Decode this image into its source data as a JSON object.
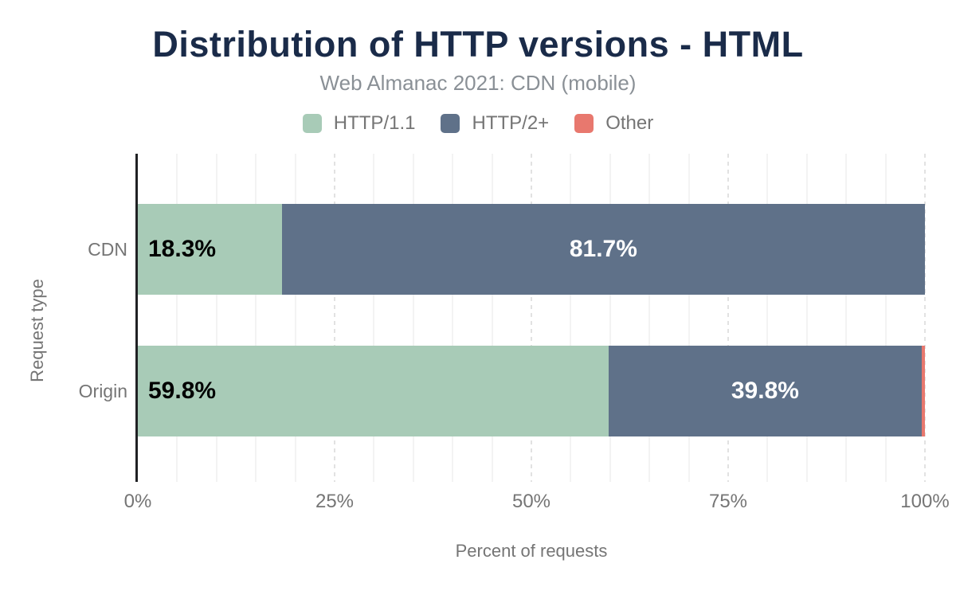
{
  "title": "Distribution of HTTP versions - HTML",
  "subtitle": "Web Almanac 2021: CDN (mobile)",
  "legend": {
    "items": [
      {
        "label": "HTTP/1.1",
        "color": "#a8cbb7"
      },
      {
        "label": "HTTP/2+",
        "color": "#5f7189"
      },
      {
        "label": "Other",
        "color": "#e8786e"
      }
    ]
  },
  "colors": {
    "title": "#1a2b49",
    "subtitle_text": "#8a9096",
    "muted_text": "#757575",
    "axis_line": "#202124",
    "grid_minor": "#f3f3f3",
    "grid_major": "#e2e2e2",
    "http11": "#a8cbb7",
    "http2plus": "#5f7189",
    "other": "#e8786e",
    "label_on_green": "#000000",
    "label_on_blue": "#ffffff"
  },
  "chart_data": {
    "type": "bar",
    "orientation": "horizontal",
    "stacked": true,
    "title": "Distribution of HTTP versions - HTML",
    "subtitle": "Web Almanac 2021: CDN (mobile)",
    "categories": [
      "CDN",
      "Origin"
    ],
    "series": [
      {
        "name": "HTTP/1.1",
        "color": "#a8cbb7",
        "values": [
          18.3,
          59.8
        ],
        "labels": [
          "18.3%",
          "59.8%"
        ]
      },
      {
        "name": "HTTP/2+",
        "color": "#5f7189",
        "values": [
          81.7,
          39.8
        ],
        "labels": [
          "81.7%",
          "39.8%"
        ]
      },
      {
        "name": "Other",
        "color": "#e8786e",
        "values": [
          0.0,
          0.4
        ],
        "labels": [
          "",
          ""
        ]
      }
    ],
    "xlabel": "Percent of requests",
    "ylabel": "Request type",
    "xlim": [
      0,
      100
    ],
    "xticks": [
      0,
      25,
      50,
      75,
      100
    ],
    "xtick_labels": [
      "0%",
      "25%",
      "50%",
      "75%",
      "100%"
    ],
    "grid": {
      "minor_every": 5,
      "major_every": 25,
      "major_style": "dashed",
      "minor_style": "solid"
    },
    "legend_position": "top"
  }
}
